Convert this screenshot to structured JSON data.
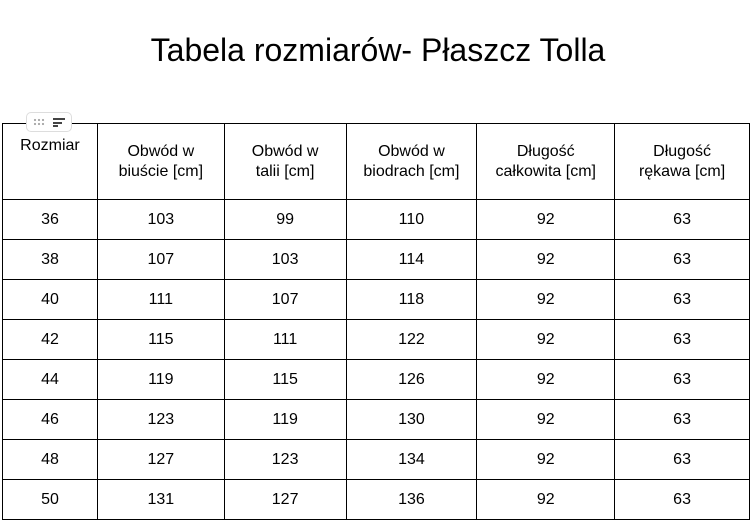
{
  "title": "Tabela rozmiarów- Płaszcz Tolla",
  "headers": [
    [
      "Rozmiar",
      ""
    ],
    [
      "Obwód w",
      "biuście [cm]"
    ],
    [
      "Obwód w",
      "talii [cm]"
    ],
    [
      "Obwód w",
      "biodrach [cm]"
    ],
    [
      "Długość",
      "całkowita [cm]"
    ],
    [
      "Długość",
      "rękawa [cm]"
    ]
  ],
  "rows": [
    [
      "36",
      "103",
      "99",
      "110",
      "92",
      "63"
    ],
    [
      "38",
      "107",
      "103",
      "114",
      "92",
      "63"
    ],
    [
      "40",
      "111",
      "107",
      "118",
      "92",
      "63"
    ],
    [
      "42",
      "115",
      "111",
      "122",
      "92",
      "63"
    ],
    [
      "44",
      "119",
      "115",
      "126",
      "92",
      "63"
    ],
    [
      "46",
      "123",
      "119",
      "130",
      "92",
      "63"
    ],
    [
      "48",
      "127",
      "123",
      "134",
      "92",
      "63"
    ],
    [
      "50",
      "131",
      "127",
      "136",
      "92",
      "63"
    ]
  ]
}
